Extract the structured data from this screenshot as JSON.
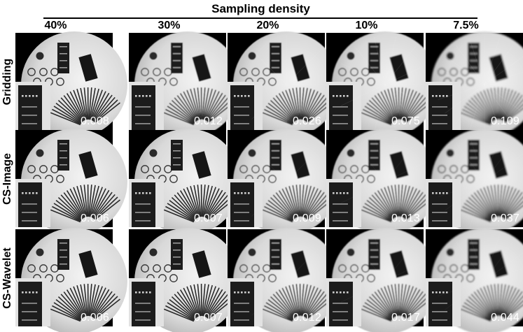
{
  "figure": {
    "super_label": "Sampling density",
    "columns": [
      "40%",
      "30%",
      "20%",
      "10%",
      "7.5%"
    ],
    "rows": [
      {
        "method": "Gridding",
        "errors": [
          "0.008",
          "0.012",
          "0.026",
          "0.075",
          "0.109"
        ]
      },
      {
        "method": "CS-Image",
        "errors": [
          "0.006",
          "0.007",
          "0.009",
          "0.013",
          "0.037"
        ]
      },
      {
        "method": "CS-Wavelet",
        "errors": [
          "0.006",
          "0.007",
          "0.012",
          "0.017",
          "0.044"
        ]
      }
    ]
  }
}
